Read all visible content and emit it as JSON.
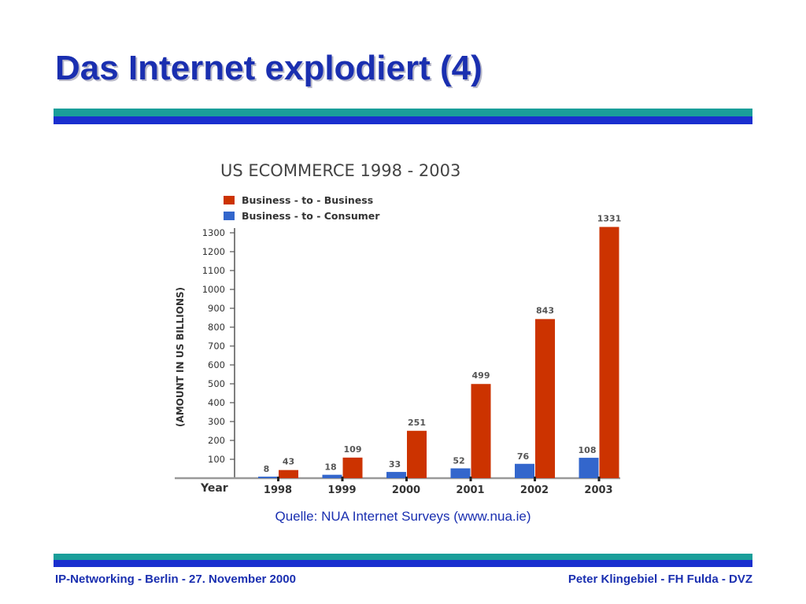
{
  "slide": {
    "title": "Das Internet explodiert (4)",
    "source": "Quelle: NUA Internet Surveys (www.nua.ie)",
    "footer_left": "IP-Networking - Berlin - 27. November 2000",
    "footer_right": "Peter Klingebiel - FH Fulda - DVZ"
  },
  "colors": {
    "title": "#1a2fb0",
    "band_teal": "#1a9e9a",
    "band_blue": "#1a2fcf",
    "b2b": "#cc3300",
    "b2c": "#3366cc",
    "chart_text": "#555555"
  },
  "chart_data": {
    "type": "bar",
    "title": "US ECOMMERCE 1998 - 2003",
    "xlabel": "Year",
    "ylabel": "(AMOUNT IN US BILLIONS)",
    "categories": [
      "1998",
      "1999",
      "2000",
      "2001",
      "2002",
      "2003"
    ],
    "series": [
      {
        "name": "Business - to - Consumer",
        "values": [
          8,
          18,
          33,
          52,
          76,
          108
        ]
      },
      {
        "name": "Business - to - Business",
        "values": [
          43,
          109,
          251,
          499,
          843,
          1331
        ]
      }
    ],
    "yticks": [
      100,
      200,
      300,
      400,
      500,
      600,
      700,
      800,
      900,
      1000,
      1100,
      1200,
      1300
    ],
    "ylim": [
      0,
      1300
    ],
    "grid": false,
    "legend_position": "top-left"
  }
}
